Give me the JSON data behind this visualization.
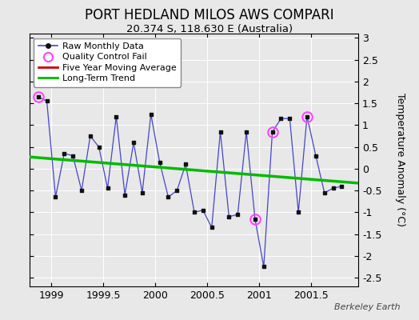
{
  "title": "PORT HEDLAND MILOS AWS COMPARI",
  "subtitle": "20.374 S, 118.630 E (Australia)",
  "ylabel": "Temperature Anomaly (°C)",
  "credit": "Berkeley Earth",
  "background_color": "#e8e8e8",
  "plot_bg_color": "#e8e8e8",
  "ylim": [
    -2.7,
    3.1
  ],
  "xlim": [
    1998.79,
    2001.95
  ],
  "x_ticks": [
    1999,
    1999.5,
    2000,
    2000.5,
    2001,
    2001.5
  ],
  "raw_x": [
    1998.875,
    1998.958,
    1999.042,
    1999.125,
    1999.208,
    1999.292,
    1999.375,
    1999.458,
    1999.542,
    1999.625,
    1999.708,
    1999.792,
    1999.875,
    1999.958,
    2000.042,
    2000.125,
    2000.208,
    2000.292,
    2000.375,
    2000.458,
    2000.542,
    2000.625,
    2000.708,
    2000.792,
    2000.875,
    2000.958,
    2001.042,
    2001.125,
    2001.208,
    2001.292,
    2001.375,
    2001.458,
    2001.542,
    2001.625,
    2001.708,
    2001.792
  ],
  "raw_y": [
    1.65,
    1.55,
    -0.65,
    0.35,
    0.3,
    -0.5,
    0.75,
    0.5,
    -0.45,
    1.2,
    -0.6,
    0.6,
    -0.55,
    1.25,
    0.15,
    -0.65,
    -0.5,
    0.1,
    -1.0,
    -0.95,
    -1.35,
    0.85,
    -1.1,
    -1.05,
    0.85,
    -1.15,
    -2.25,
    0.85,
    1.15,
    1.15,
    -1.0,
    1.2,
    0.3,
    -0.55,
    -0.45,
    -0.4
  ],
  "qc_fail_indices": [
    0,
    25,
    27,
    31
  ],
  "trend_x": [
    1998.79,
    2001.95
  ],
  "trend_y": [
    0.27,
    -0.33
  ],
  "raw_line_color": "#4444cc",
  "raw_marker_color": "#111111",
  "qc_color": "#ff44ff",
  "trend_color": "#00bb00",
  "five_yr_color": "#cc0000",
  "grid_color": "#cccccc",
  "y_ticks": [
    -2.5,
    -2,
    -1.5,
    -1,
    -0.5,
    0,
    0.5,
    1,
    1.5,
    2,
    2.5,
    3
  ]
}
